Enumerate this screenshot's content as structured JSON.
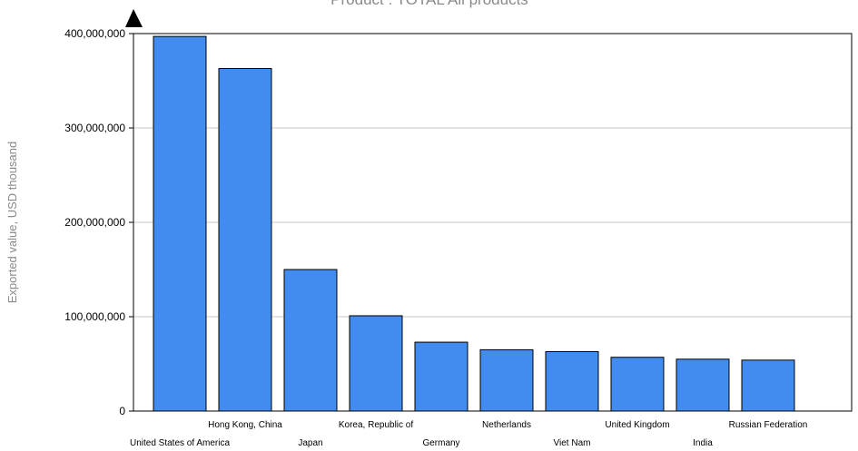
{
  "chart_data": {
    "type": "bar",
    "title": "Product : TOTAL All products",
    "ylabel": "Exported value, USD thousand",
    "xlabel": "",
    "ylim": [
      0,
      400000000
    ],
    "yticks": [
      0,
      100000000,
      200000000,
      300000000,
      400000000
    ],
    "ytick_labels": [
      "0",
      "100,000,000",
      "200,000,000",
      "300,000,000",
      "400,000,000"
    ],
    "grid": true,
    "categories": [
      "United States of America",
      "Hong Kong, China",
      "Japan",
      "Korea, Republic of",
      "Germany",
      "Netherlands",
      "Viet Nam",
      "United Kingdom",
      "India",
      "Russian Federation"
    ],
    "values": [
      397000000,
      363000000,
      150000000,
      101000000,
      73000000,
      65000000,
      63000000,
      57000000,
      55000000,
      54000000
    ],
    "bar_color": "#428bef"
  }
}
